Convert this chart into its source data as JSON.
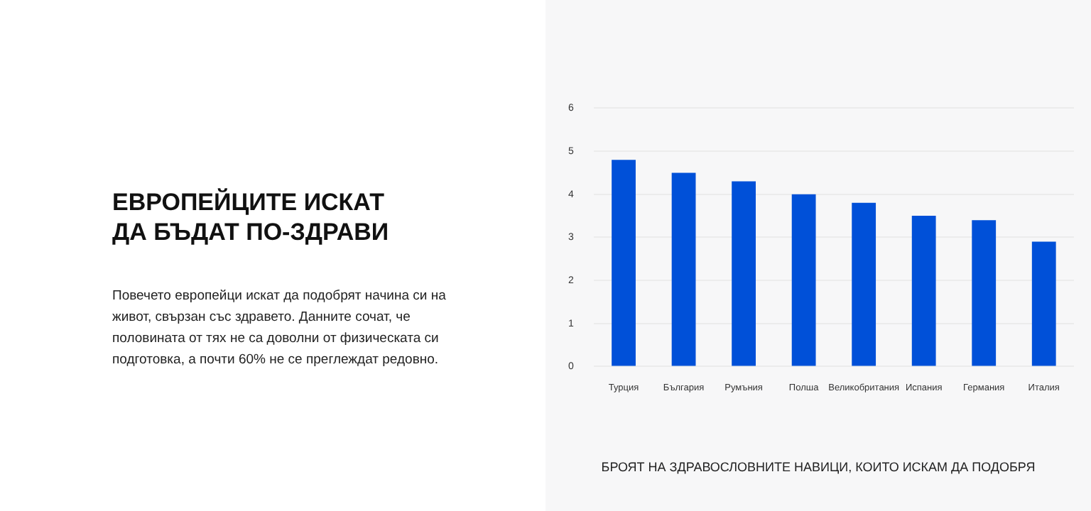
{
  "chart_data": {
    "type": "bar",
    "title": "ЕВРОПЕЙЦИТЕ ИСКАТ ДА БЪДАТ ПО-ЗДРАВИ",
    "subtitle": "Повечето европейци искат да подобрят начина си на живот, свързан със здравето. Данните сочат, че половината от тях не са доволни от физическата си подготовка, а почти 60% не се преглеждат редовно.",
    "annotations": [
      "БРОЯТ НА ЗДРАВОСЛОВНИТЕ НАВИЦИ, КОИТО ИСКАМ ДА ПОДОБРЯ"
    ],
    "categories": [
      "Турция",
      "България",
      "Румъния",
      "Полша",
      "Великобритания",
      "Испания",
      "Германия",
      "Италия"
    ],
    "values": [
      4.8,
      4.5,
      4.3,
      4.0,
      3.8,
      3.5,
      3.4,
      2.9
    ],
    "color": "#0050d8",
    "ylim": [
      0,
      6
    ],
    "yticks": [
      0,
      1,
      2,
      3,
      4,
      5,
      6
    ],
    "grid": "y",
    "legend": false
  }
}
